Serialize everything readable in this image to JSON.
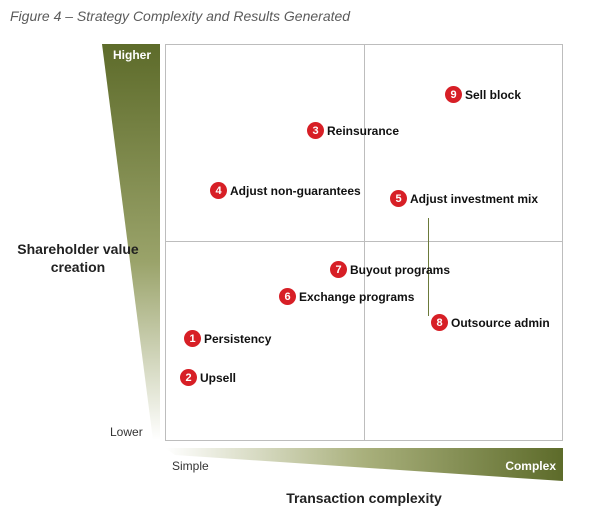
{
  "figure": {
    "title": "Figure 4 – Strategy Complexity and Results Generated"
  },
  "y_axis": {
    "title": "Shareholder value creation",
    "high_label": "Higher",
    "low_label": "Lower"
  },
  "x_axis": {
    "title": "Transaction complexity",
    "low_label": "Simple",
    "high_label": "Complex"
  },
  "colors": {
    "accent_dark": "#5d6b2a",
    "accent_light": "#ffffff",
    "marker": "#d71f26",
    "grid": "#bdbdbd"
  },
  "strategies": [
    {
      "number": "1",
      "name": "Persistency"
    },
    {
      "number": "2",
      "name": "Upsell"
    },
    {
      "number": "3",
      "name": "Reinsurance"
    },
    {
      "number": "4",
      "name": "Adjust non-guarantees"
    },
    {
      "number": "5",
      "name": "Adjust investment mix"
    },
    {
      "number": "6",
      "name": "Exchange programs"
    },
    {
      "number": "7",
      "name": "Buyout programs"
    },
    {
      "number": "8",
      "name": "Outsource admin"
    },
    {
      "number": "9",
      "name": "Sell block"
    }
  ]
}
